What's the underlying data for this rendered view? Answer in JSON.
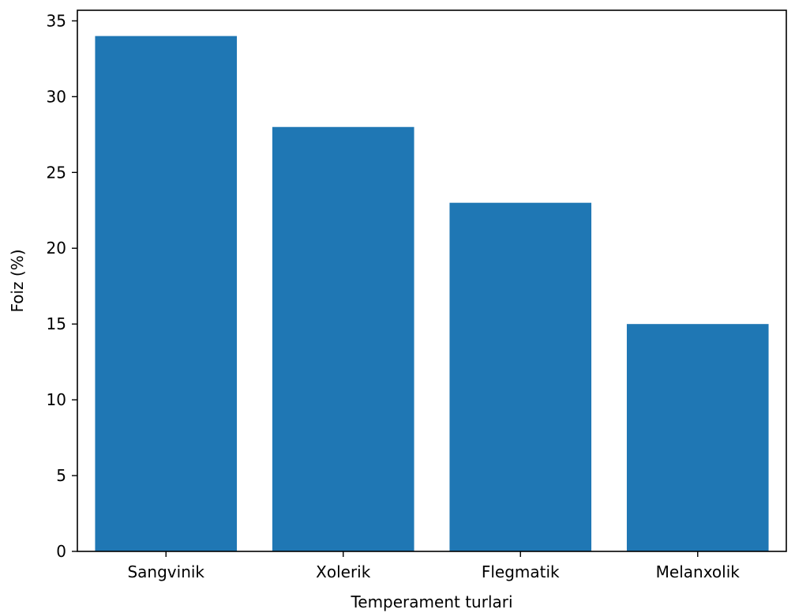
{
  "chart_data": {
    "type": "bar",
    "title": "",
    "xlabel": "Temperament turlari",
    "ylabel": "Foiz (%)",
    "categories": [
      "Sangvinik",
      "Xolerik",
      "Flegmatik",
      "Melanxolik"
    ],
    "values": [
      34,
      28,
      23,
      15
    ],
    "ylim": [
      0,
      35.7
    ],
    "yticks": [
      0,
      5,
      10,
      15,
      20,
      25,
      30,
      35
    ],
    "ytick_labels": [
      "0",
      "5",
      "10",
      "15",
      "20",
      "25",
      "30",
      "35"
    ],
    "bar_color": "#1f77b4",
    "grid": false,
    "legend": "none"
  }
}
